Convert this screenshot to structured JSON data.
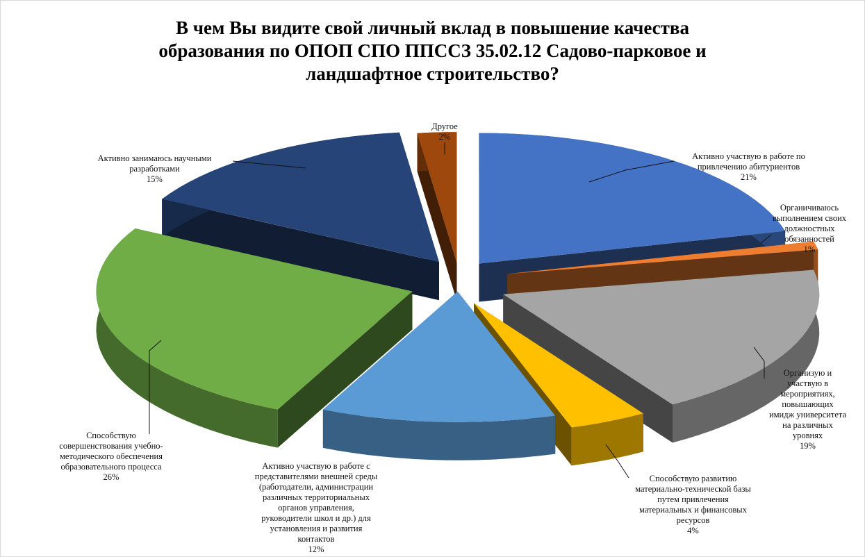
{
  "chart_data": {
    "type": "pie",
    "title_lines": [
      "В чем Вы видите свой личный вклад в повышение качества",
      "образования по ОПОП СПО ППССЗ  35.02.12 Садово-парковое  и",
      "ландшафтное  строительство?"
    ],
    "slices": [
      {
        "label": "Активно участвую в работе по привлечению абитуриентов",
        "label_lines": "Активно участвую в работе по\nпривлечению абитуриентов",
        "value": 21,
        "value_text": "21%",
        "color": "#4472C4"
      },
      {
        "label": "Органичиваюсь выполнением своих должностных обязанностей",
        "label_lines": "Органичиваюсь\nвыполнением своих\nдолжностных\nобязанностей",
        "value": 1,
        "value_text": "1%",
        "color": "#ED7D31"
      },
      {
        "label": "Организую и участвую в мероприятиях, повышающих имидж университета на различных уровнях",
        "label_lines": "Организую и\nучаствую в\nмероприятиях,\nповышающих\nимидж университета\nна различных\nуровнях",
        "value": 19,
        "value_text": "19%",
        "color": "#A5A5A5"
      },
      {
        "label": "Способствую развитию материально-технической базы путем привлечения материальных и финансовых ресурсов",
        "label_lines": "Способствую развитию\nматериально-технической базы\nпутем привлечения\nматериальных и финансовых\nресурсов",
        "value": 4,
        "value_text": "4%",
        "color": "#FFC000"
      },
      {
        "label": "Активно участвую в работе с представителями внешней среды (работодатели, администрации различных территориальных органов управления, руководители школ и др.) для установления и развития контактов",
        "label_lines": "Активно участвую в работе с\nпредставителями внешней среды\n(работодатели, администрации\nразличных территориальных\nорганов управления,\nруководители школ и др.) для\nустановления и развития\nконтактов",
        "value": 12,
        "value_text": "12%",
        "color": "#5B9BD5"
      },
      {
        "label": "Способствую совершенствования учебно-методического обеспечения образовательного процесса",
        "label_lines": "Способствую\nсовершенствования учебно-\nметодического обеспечения\nобразовательного процесса",
        "value": 26,
        "value_text": "26%",
        "color": "#70AD47"
      },
      {
        "label": "Активно занимаюсь научными разработками",
        "label_lines": "Активно занимаюсь научными\nразработками",
        "value": 15,
        "value_text": "15%",
        "color": "#264478"
      },
      {
        "label": "Другое",
        "label_lines": "Другое",
        "value": 2,
        "value_text": "2%",
        "color": "#9E480E"
      }
    ],
    "legend": "none",
    "style": "exploded 3D pie"
  }
}
